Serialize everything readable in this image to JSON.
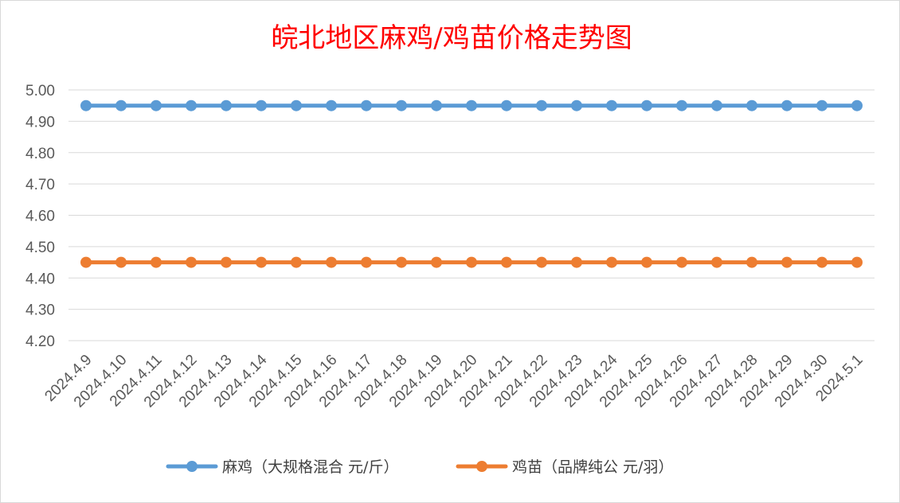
{
  "chart_data": {
    "type": "line",
    "title": "皖北地区麻鸡/鸡苗价格走势图",
    "title_color": "#ff0000",
    "categories": [
      "2024.4.9",
      "2024.4.10",
      "2024.4.11",
      "2024.4.12",
      "2024.4.13",
      "2024.4.14",
      "2024.4.15",
      "2024.4.16",
      "2024.4.17",
      "2024.4.18",
      "2024.4.19",
      "2024.4.20",
      "2024.4.21",
      "2024.4.22",
      "2024.4.23",
      "2024.4.24",
      "2024.4.25",
      "2024.4.26",
      "2024.4.27",
      "2024.4.28",
      "2024.4.29",
      "2024.4.30",
      "2024.5.1"
    ],
    "series": [
      {
        "name": "麻鸡（大规格混合 元/斤）",
        "color": "#5b9bd5",
        "values": [
          4.95,
          4.95,
          4.95,
          4.95,
          4.95,
          4.95,
          4.95,
          4.95,
          4.95,
          4.95,
          4.95,
          4.95,
          4.95,
          4.95,
          4.95,
          4.95,
          4.95,
          4.95,
          4.95,
          4.95,
          4.95,
          4.95,
          4.95
        ]
      },
      {
        "name": "鸡苗（品牌纯公 元/羽）",
        "color": "#ed7d31",
        "values": [
          4.45,
          4.45,
          4.45,
          4.45,
          4.45,
          4.45,
          4.45,
          4.45,
          4.45,
          4.45,
          4.45,
          4.45,
          4.45,
          4.45,
          4.45,
          4.45,
          4.45,
          4.45,
          4.45,
          4.45,
          4.45,
          4.45,
          4.45
        ]
      }
    ],
    "yticks": [
      "4.20",
      "4.30",
      "4.40",
      "4.50",
      "4.60",
      "4.70",
      "4.80",
      "4.90",
      "5.00"
    ],
    "ylim": [
      4.2,
      5.0
    ],
    "xlabel": "",
    "ylabel": "",
    "grid": true,
    "legend_position": "bottom"
  }
}
